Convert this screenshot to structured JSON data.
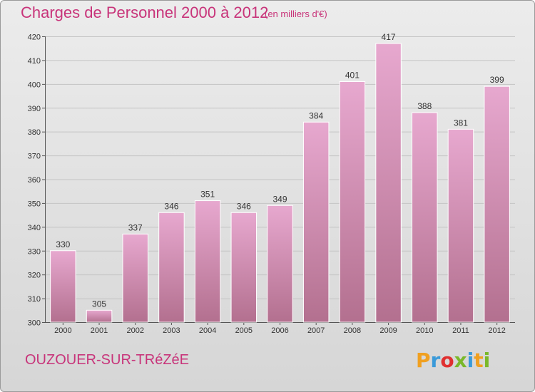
{
  "header": {
    "title": "Charges de Personnel 2000 à 2012",
    "unit": "(en milliers d'€)"
  },
  "footer": {
    "commune": "OUZOUER-SUR-TRéZéE",
    "logo_letters": [
      "P",
      "r",
      "o",
      "x",
      "i",
      "t",
      "i"
    ],
    "logo_colors": [
      "#f0a020",
      "#3a9ad9",
      "#e03030",
      "#7ab82a",
      "#3a9ad9",
      "#f0a020",
      "#7ab82a"
    ]
  },
  "colors": {
    "title": "#c8347a",
    "bar_top": "#e7a8cf",
    "bar_bottom": "#b3708f"
  },
  "chart_data": {
    "type": "bar",
    "title": "Charges de Personnel 2000 à 2012",
    "subtitle": "(en milliers d'€)",
    "categories": [
      "2000",
      "2001",
      "2002",
      "2003",
      "2004",
      "2005",
      "2006",
      "2007",
      "2008",
      "2009",
      "2010",
      "2011",
      "2012"
    ],
    "values": [
      330,
      305,
      337,
      346,
      351,
      346,
      349,
      384,
      401,
      417,
      388,
      381,
      399
    ],
    "ylim": [
      300,
      420
    ],
    "yticks": [
      300,
      310,
      320,
      330,
      340,
      350,
      360,
      370,
      380,
      390,
      400,
      410,
      420
    ],
    "grid": true,
    "legend": "none"
  }
}
